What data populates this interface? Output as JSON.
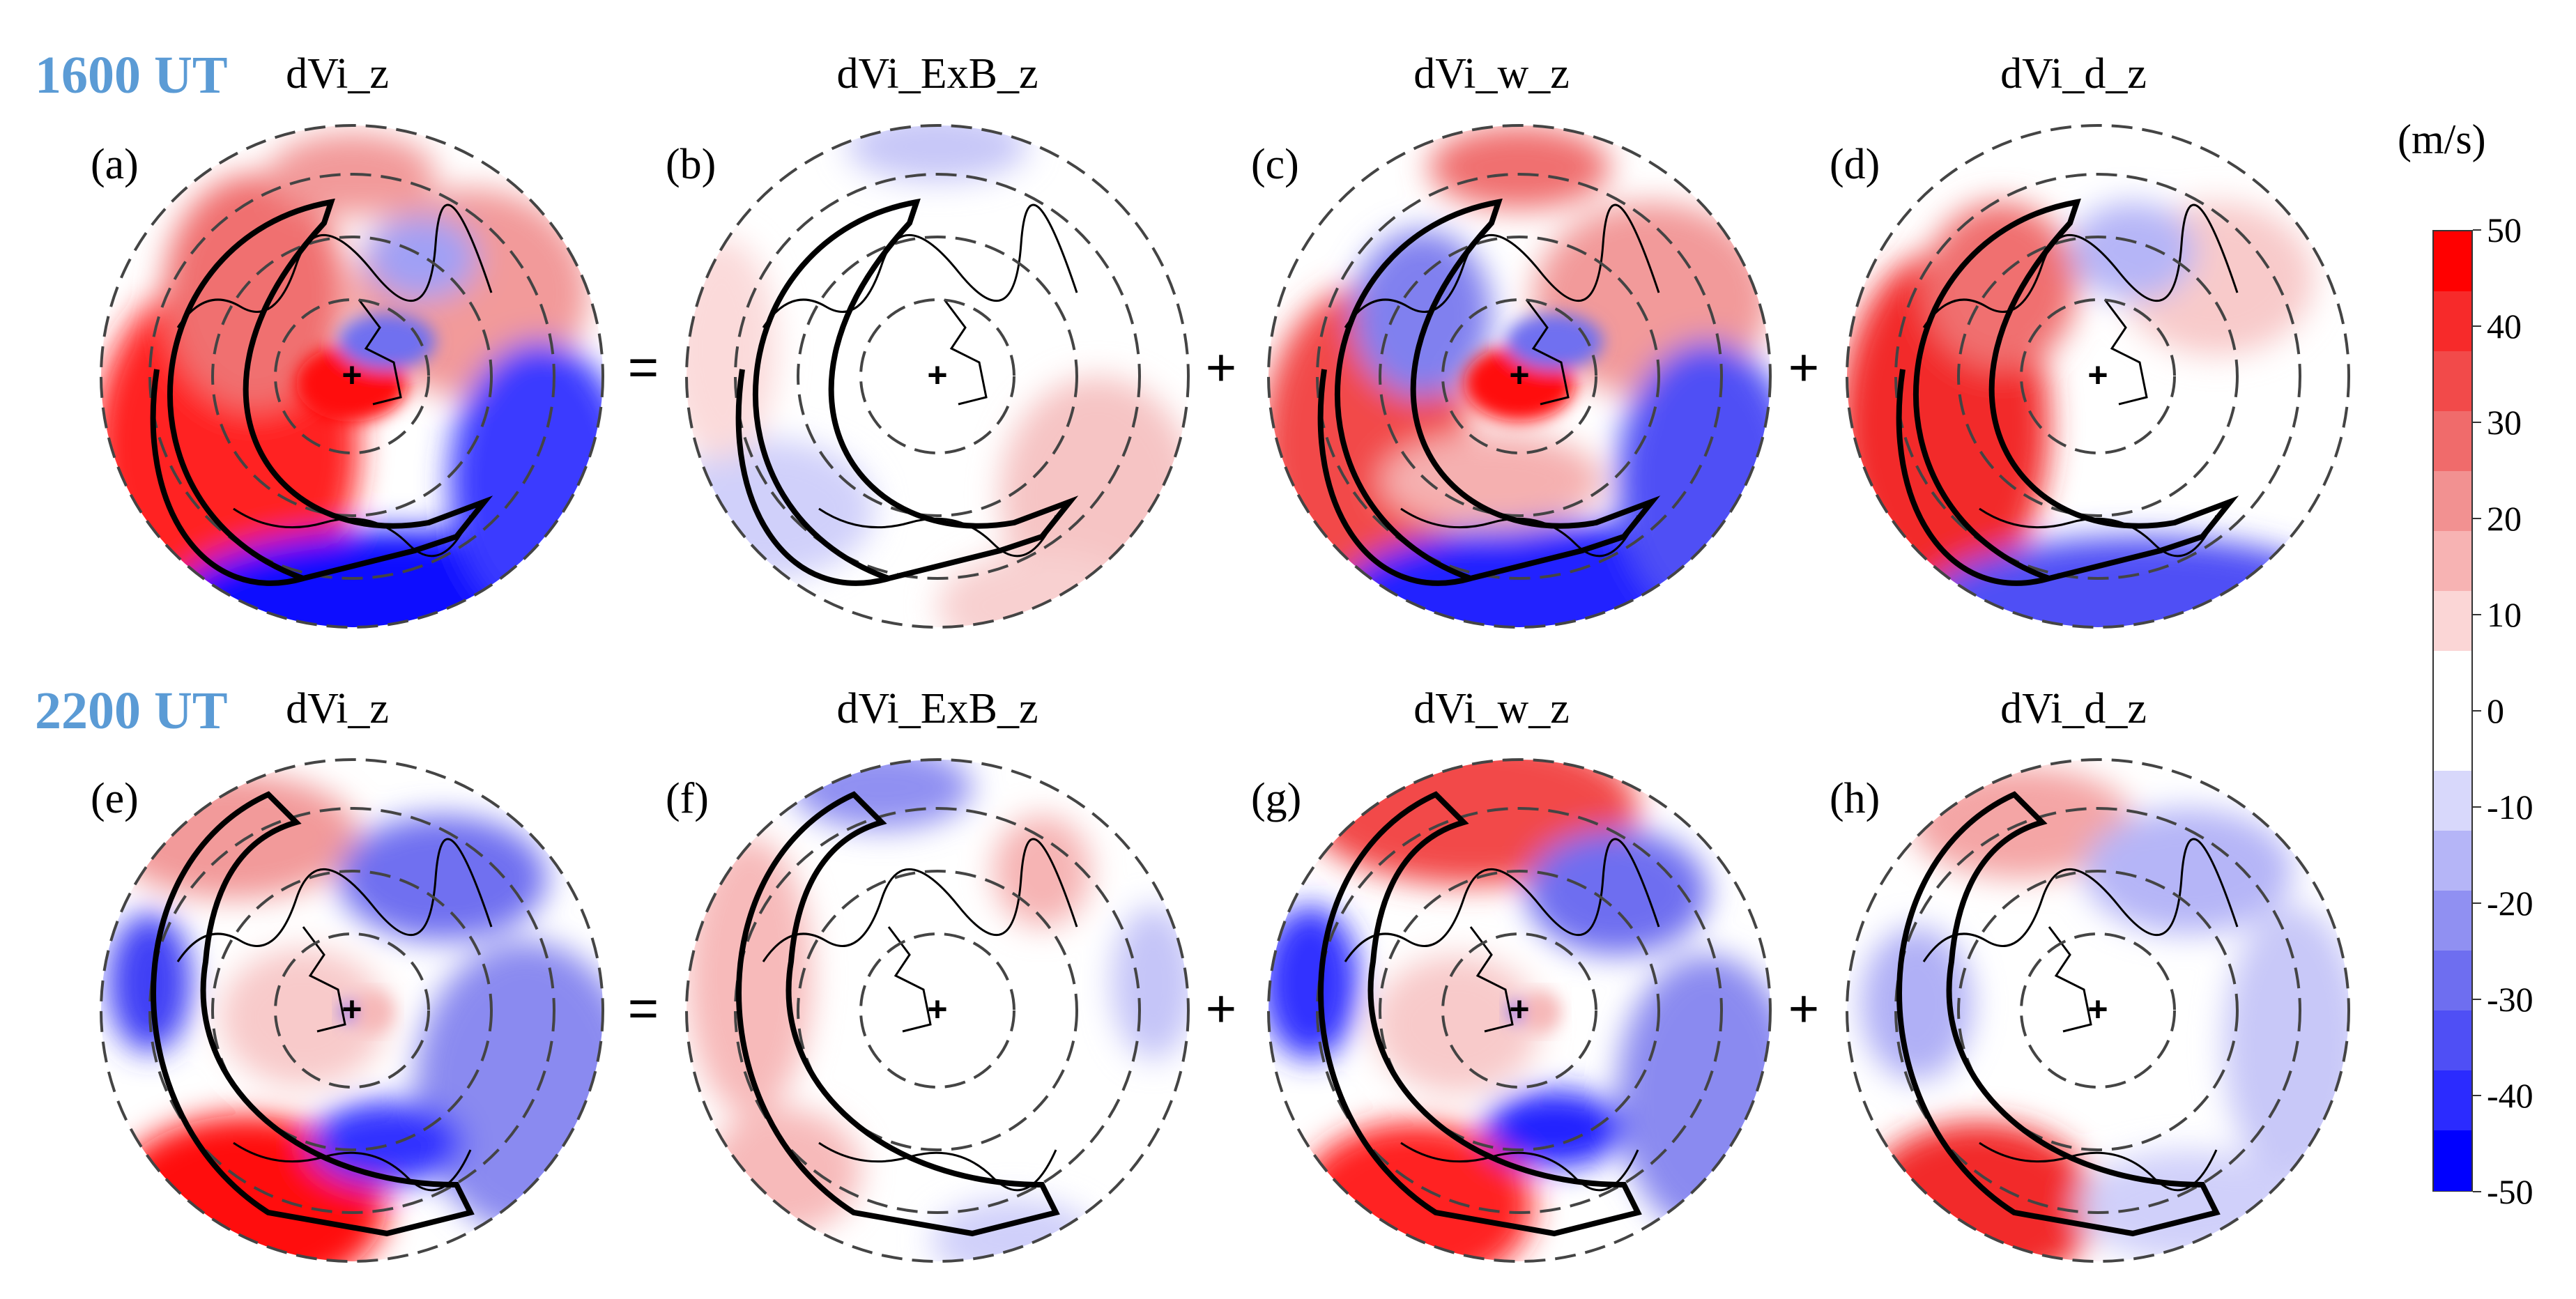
{
  "rows": [
    {
      "label": "1600 UT",
      "panels": [
        {
          "letter": "(a)",
          "title": "dVi_z"
        },
        {
          "letter": "(b)",
          "title": "dVi_ExB_z"
        },
        {
          "letter": "(c)",
          "title": "dVi_w_z"
        },
        {
          "letter": "(d)",
          "title": "dVi_d_z"
        }
      ]
    },
    {
      "label": "2200 UT",
      "panels": [
        {
          "letter": "(e)",
          "title": "dVi_z"
        },
        {
          "letter": "(f)",
          "title": "dVi_ExB_z"
        },
        {
          "letter": "(g)",
          "title": "dVi_w_z"
        },
        {
          "letter": "(h)",
          "title": "dVi_d_z"
        }
      ]
    }
  ],
  "operators": [
    "=",
    "+",
    "+"
  ],
  "colorbar": {
    "unit": "(m/s)",
    "ticks": [
      "50",
      "40",
      "30",
      "20",
      "10",
      "0",
      "-10",
      "-20",
      "-30",
      "-40",
      "-50"
    ],
    "range": [
      -50,
      50
    ],
    "colors": [
      "#0000ff",
      "#2b2bff",
      "#4f4ff5",
      "#6e6ef0",
      "#9090f2",
      "#b5b5f7",
      "#d8d8fb",
      "#ffffff",
      "#ffffff",
      "#fbd6d6",
      "#f7b3b3",
      "#f29191",
      "#f06b6b",
      "#f24a4a",
      "#f72a2a",
      "#ff0000"
    ]
  },
  "colors": {
    "row_label": "#5b9bd5",
    "positive": "#ff0000",
    "negative": "#0000ff"
  }
}
